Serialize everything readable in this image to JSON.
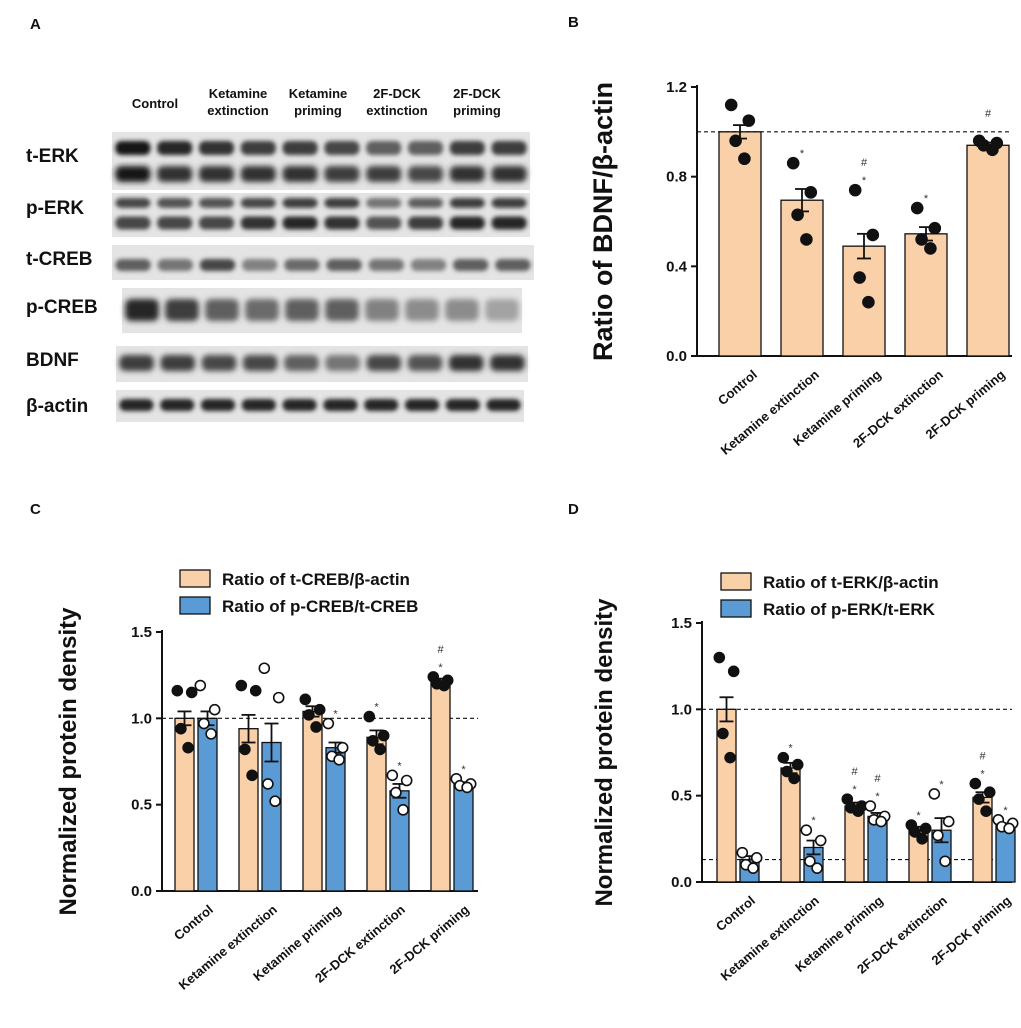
{
  "panels": {
    "a": "A",
    "b": "B",
    "c": "C",
    "d": "D"
  },
  "blot": {
    "lanes": [
      [
        "Control"
      ],
      [
        "Ketamine",
        "extinction"
      ],
      [
        "Ketamine",
        "priming"
      ],
      [
        "2F-DCK",
        "extinction"
      ],
      [
        "2F-DCK",
        "priming"
      ]
    ],
    "rows": [
      "t-ERK",
      "p-ERK",
      "t-CREB",
      "p-CREB",
      "BDNF",
      "β-actin"
    ]
  },
  "colors": {
    "orange": "#f9d0a8",
    "blue": "#5b9bd5",
    "axis": "#111111"
  },
  "chart_data": [
    {
      "panel": "B",
      "type": "bar",
      "ylabel": "Ratio of BDNF/β-actin",
      "ylim": [
        0,
        1.2
      ],
      "yticks": [
        "0.0",
        "0.4",
        "0.8",
        "1.2"
      ],
      "reference_line": 1.0,
      "categories": [
        "Control",
        "Ketamine extinction",
        "Ketamine priming",
        "2F-DCK extinction",
        "2F-DCK priming"
      ],
      "series": [
        {
          "color": "#f9d0a8",
          "values": [
            1.0,
            0.695,
            0.49,
            0.545,
            0.94
          ],
          "sem": [
            0.03,
            0.05,
            0.055,
            0.03,
            0.012
          ],
          "points": [
            [
              1.12,
              1.05,
              0.96,
              0.88
            ],
            [
              0.86,
              0.73,
              0.63,
              0.52
            ],
            [
              0.74,
              0.54,
              0.35,
              0.24
            ],
            [
              0.66,
              0.57,
              0.52,
              0.48
            ],
            [
              0.96,
              0.95,
              0.94,
              0.92
            ]
          ],
          "filled": true,
          "stars": [
            "",
            "*",
            "*",
            "*",
            ""
          ],
          "hashes": [
            "",
            "",
            "#",
            "",
            "#"
          ]
        }
      ]
    },
    {
      "panel": "C",
      "type": "bar",
      "ylabel": "Normalized protein density",
      "ylim": [
        0,
        1.5
      ],
      "yticks": [
        "0.0",
        "0.5",
        "1.0",
        "1.5"
      ],
      "reference_line": 1.0,
      "legend": [
        "Ratio of t-CREB/β-actin",
        "Ratio of p-CREB/t-CREB"
      ],
      "categories": [
        "Control",
        "Ketamine extinction",
        "Ketamine priming",
        "2F-DCK extinction",
        "2F-DCK priming"
      ],
      "series": [
        {
          "color": "#f9d0a8",
          "values": [
            1.0,
            0.94,
            1.04,
            0.89,
            1.21
          ],
          "sem": [
            0.04,
            0.08,
            0.03,
            0.04,
            0.02
          ],
          "points": [
            [
              1.16,
              1.15,
              0.94,
              0.83
            ],
            [
              1.19,
              1.16,
              0.82,
              0.67
            ],
            [
              1.11,
              1.05,
              1.02,
              0.95
            ],
            [
              1.01,
              0.9,
              0.87,
              0.82
            ],
            [
              1.24,
              1.22,
              1.2,
              1.19
            ]
          ],
          "filled": true,
          "stars": [
            "",
            "",
            "",
            "*",
            "*"
          ],
          "hashes": [
            "",
            "",
            "",
            "",
            "#"
          ]
        },
        {
          "color": "#5b9bd5",
          "values": [
            1.0,
            0.86,
            0.83,
            0.58,
            0.62
          ],
          "sem": [
            0.04,
            0.11,
            0.03,
            0.04,
            0.01
          ],
          "points": [
            [
              1.19,
              1.05,
              0.97,
              0.91
            ],
            [
              1.29,
              1.12,
              0.62,
              0.52
            ],
            [
              0.97,
              0.83,
              0.78,
              0.76
            ],
            [
              0.67,
              0.64,
              0.57,
              0.47
            ],
            [
              0.65,
              0.62,
              0.61,
              0.6
            ]
          ],
          "filled": false,
          "stars": [
            "",
            "",
            "*",
            "*",
            "*"
          ],
          "hashes": [
            "",
            "",
            "",
            "",
            ""
          ]
        }
      ]
    },
    {
      "panel": "D",
      "type": "bar",
      "ylabel": "Normalized protein density",
      "ylim": [
        0,
        1.5
      ],
      "yticks": [
        "0.0",
        "0.5",
        "1.0",
        "1.5"
      ],
      "reference_line": 1.0,
      "reference_line_2": 0.13,
      "legend": [
        "Ratio of t-ERK/β-actin",
        "Ratio of p-ERK/t-ERK"
      ],
      "categories": [
        "Control",
        "Ketamine extinction",
        "Ketamine priming",
        "2F-DCK extinction",
        "2F-DCK priming"
      ],
      "series": [
        {
          "color": "#f9d0a8",
          "values": [
            1.0,
            0.66,
            0.44,
            0.3,
            0.49
          ],
          "sem": [
            0.07,
            0.03,
            0.02,
            0.02,
            0.03
          ],
          "points": [
            [
              1.3,
              1.22,
              0.86,
              0.72
            ],
            [
              0.72,
              0.68,
              0.64,
              0.6
            ],
            [
              0.48,
              0.44,
              0.43,
              0.41
            ],
            [
              0.33,
              0.31,
              0.29,
              0.25
            ],
            [
              0.57,
              0.52,
              0.48,
              0.41
            ]
          ],
          "filled": true,
          "stars": [
            "",
            "*",
            "*",
            "*",
            "*"
          ],
          "hashes": [
            "",
            "",
            "#",
            "",
            "#"
          ]
        },
        {
          "color": "#5b9bd5",
          "values": [
            0.13,
            0.2,
            0.38,
            0.3,
            0.33
          ],
          "sem": [
            0.02,
            0.04,
            0.02,
            0.07,
            0.01
          ],
          "points": [
            [
              0.17,
              0.14,
              0.1,
              0.08
            ],
            [
              0.3,
              0.24,
              0.12,
              0.08
            ],
            [
              0.44,
              0.38,
              0.36,
              0.35
            ],
            [
              0.51,
              0.35,
              0.27,
              0.12
            ],
            [
              0.36,
              0.34,
              0.32,
              0.31
            ]
          ],
          "filled": false,
          "stars": [
            "",
            "*",
            "*",
            "*",
            "*"
          ],
          "hashes": [
            "",
            "",
            "#",
            "",
            ""
          ]
        }
      ]
    }
  ]
}
